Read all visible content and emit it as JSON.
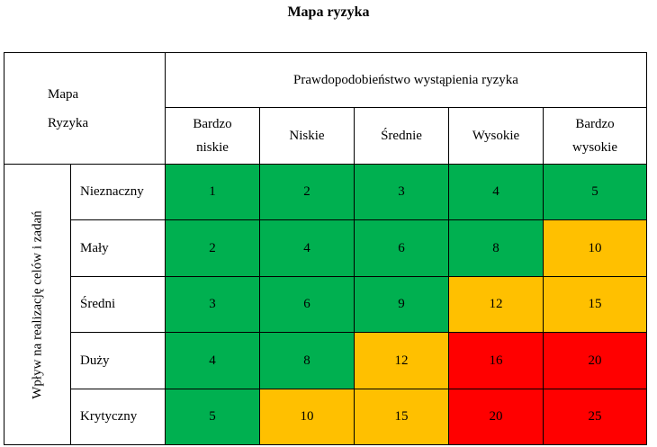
{
  "title": "Mapa ryzyka",
  "corner": {
    "line1": "Mapa",
    "line2": "Ryzyka"
  },
  "probability_header": "Prawdopodobieństwo wystąpienia ryzyka",
  "impact_header": "Wpływ na realizację celów i zadań",
  "columns": [
    {
      "line1": "Bardzo",
      "line2": "niskie"
    },
    {
      "line1": "Niskie",
      "line2": ""
    },
    {
      "line1": "Średnie",
      "line2": ""
    },
    {
      "line1": "Wysokie",
      "line2": ""
    },
    {
      "line1": "Bardzo",
      "line2": "wysokie"
    }
  ],
  "rows": [
    {
      "label": "Nieznaczny",
      "values": [
        "1",
        "2",
        "3",
        "4",
        "5"
      ],
      "levels": [
        "green",
        "green",
        "green",
        "green",
        "green"
      ]
    },
    {
      "label": "Mały",
      "values": [
        "2",
        "4",
        "6",
        "8",
        "10"
      ],
      "levels": [
        "green",
        "green",
        "green",
        "green",
        "yellow"
      ]
    },
    {
      "label": "Średni",
      "values": [
        "3",
        "6",
        "9",
        "12",
        "15"
      ],
      "levels": [
        "green",
        "green",
        "green",
        "yellow",
        "yellow"
      ]
    },
    {
      "label": "Duży",
      "values": [
        "4",
        "8",
        "12",
        "16",
        "20"
      ],
      "levels": [
        "green",
        "green",
        "yellow",
        "red",
        "red"
      ]
    },
    {
      "label": "Krytyczny",
      "values": [
        "5",
        "10",
        "15",
        "20",
        "25"
      ],
      "levels": [
        "green",
        "yellow",
        "yellow",
        "red",
        "red"
      ]
    }
  ],
  "colors": {
    "green": "#00b050",
    "yellow": "#ffc000",
    "red": "#ff0000"
  }
}
